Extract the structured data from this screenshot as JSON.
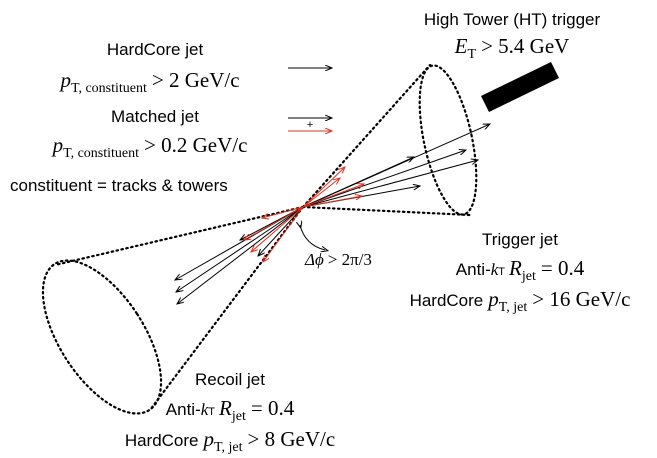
{
  "trigger": {
    "title": "High Tower (HT) trigger",
    "cut": {
      "symbol": "E",
      "sub": "T",
      "rest": "> 5.4 GeV"
    }
  },
  "hardcore": {
    "title": "HardCore jet",
    "cut": {
      "symbol": "p",
      "sub": "T, constituent",
      "rest": "> 2 GeV/c"
    }
  },
  "matched": {
    "title": "Matched jet",
    "cut": {
      "symbol": "p",
      "sub": "T, constituent",
      "rest": "> 0.2 GeV/c"
    },
    "plus": "+"
  },
  "constituent_note": "constituent = tracks & towers",
  "angle": {
    "symbol": "Δϕ",
    "rest": "> 2π/3"
  },
  "trigger_jet": {
    "title": "Trigger jet",
    "radius": {
      "prefix": "Anti-",
      "k": "k",
      "ksub": "T",
      "R": "R",
      "Rsub": "jet",
      "rest": "= 0.4"
    },
    "hardcore": {
      "prefix": "HardCore",
      "symbol": "p",
      "sub": "T, jet",
      "rest": "> 16 GeV/c"
    }
  },
  "recoil_jet": {
    "title": "Recoil jet",
    "radius": {
      "prefix": "Anti-",
      "k": "k",
      "ksub": "T",
      "R": "R",
      "Rsub": "jet",
      "rest": "= 0.4"
    },
    "hardcore": {
      "prefix": "HardCore",
      "symbol": "p",
      "sub": "T, jet",
      "rest": "> 8 GeV/c"
    }
  }
}
